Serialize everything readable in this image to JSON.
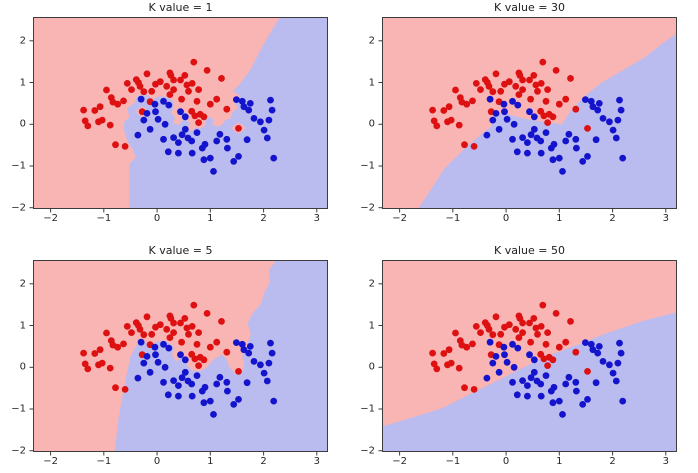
{
  "colors": {
    "region_red": "#f9b4b4",
    "region_blue": "#babcf0",
    "dot_red": "#dd1111",
    "dot_blue": "#1414cc",
    "axis": "#3d3d3d",
    "text": "#262626"
  },
  "chart_data": {
    "type": "scatter",
    "description": "KNN decision boundary plots on two-moons data for four K values",
    "xlim": [
      -2.33,
      3.21
    ],
    "ylim": [
      -2.03,
      2.57
    ],
    "xticks": [
      -2,
      -1,
      0,
      1,
      2,
      3
    ],
    "yticks": [
      -2,
      -1,
      0,
      1,
      2
    ],
    "grid": false,
    "legend": false,
    "series": [
      {
        "name": "class_red",
        "color": "#dd1111",
        "points": [
          [
            -1.38,
            0.34
          ],
          [
            -1.35,
            0.08
          ],
          [
            -1.3,
            -0.04
          ],
          [
            -1.17,
            0.33
          ],
          [
            -1.1,
            0.06
          ],
          [
            -1.07,
            0.42
          ],
          [
            -1.03,
            0.1
          ],
          [
            -0.95,
            0.82
          ],
          [
            -0.88,
            -0.02
          ],
          [
            -0.86,
            0.64
          ],
          [
            -0.83,
            0.53
          ],
          [
            -0.78,
            -0.49
          ],
          [
            -0.74,
            0.48
          ],
          [
            -0.63,
            0.56
          ],
          [
            -0.6,
            -0.53
          ],
          [
            -0.56,
            0.98
          ],
          [
            -0.48,
            0.83
          ],
          [
            -0.39,
            1.07
          ],
          [
            -0.35,
            1.0
          ],
          [
            -0.32,
            0.91
          ],
          [
            -0.28,
            0.3
          ],
          [
            -0.25,
            0.78
          ],
          [
            -0.19,
            1.21
          ],
          [
            -0.13,
            0.54
          ],
          [
            -0.1,
            0.79
          ],
          [
            -0.03,
            0.96
          ],
          [
            0.06,
            1.02
          ],
          [
            0.18,
            0.91
          ],
          [
            0.24,
            1.23
          ],
          [
            0.24,
            0.71
          ],
          [
            0.26,
            1.17
          ],
          [
            0.31,
            0.83
          ],
          [
            0.31,
            1.06
          ],
          [
            0.44,
            1.06
          ],
          [
            0.46,
            0.6
          ],
          [
            0.52,
            1.17
          ],
          [
            0.56,
            0.94
          ],
          [
            0.59,
            0.79
          ],
          [
            0.65,
            0.31
          ],
          [
            0.66,
            0.98
          ],
          [
            0.69,
            1.49
          ],
          [
            0.71,
            0.2
          ],
          [
            0.75,
            0.55
          ],
          [
            0.78,
            0.83
          ],
          [
            0.78,
            0.04
          ],
          [
            0.81,
            0.24
          ],
          [
            0.88,
            0.18
          ],
          [
            0.94,
            1.29
          ],
          [
            1.0,
            0.48
          ],
          [
            1.12,
            0.6
          ],
          [
            1.21,
            1.1
          ],
          [
            1.31,
            0.36
          ],
          [
            1.53,
            -0.1
          ]
        ]
      },
      {
        "name": "class_blue",
        "color": "#1414cc",
        "points": [
          [
            -0.36,
            -0.26
          ],
          [
            -0.3,
            0.6
          ],
          [
            -0.25,
            0.1
          ],
          [
            -0.19,
            0.26
          ],
          [
            -0.13,
            -0.12
          ],
          [
            -0.04,
            0.48
          ],
          [
            -0.03,
            0.3
          ],
          [
            0.02,
            0.12
          ],
          [
            0.12,
            0.55
          ],
          [
            0.12,
            -0.36
          ],
          [
            0.15,
            0.0
          ],
          [
            0.21,
            -0.66
          ],
          [
            0.22,
            0.46
          ],
          [
            0.31,
            -0.32
          ],
          [
            0.4,
            -0.44
          ],
          [
            0.4,
            -0.69
          ],
          [
            0.44,
            0.3
          ],
          [
            0.47,
            -0.25
          ],
          [
            0.53,
            -0.12
          ],
          [
            0.53,
            0.18
          ],
          [
            0.58,
            -0.33
          ],
          [
            0.65,
            -0.4
          ],
          [
            0.66,
            -0.69
          ],
          [
            0.75,
            -0.2
          ],
          [
            0.85,
            -0.57
          ],
          [
            0.88,
            -0.85
          ],
          [
            0.9,
            -0.48
          ],
          [
            1.0,
            -0.81
          ],
          [
            1.06,
            -1.13
          ],
          [
            1.12,
            -0.4
          ],
          [
            1.18,
            -0.24
          ],
          [
            1.31,
            -0.36
          ],
          [
            1.32,
            -0.57
          ],
          [
            1.44,
            -0.89
          ],
          [
            1.49,
            0.59
          ],
          [
            1.53,
            -0.77
          ],
          [
            1.6,
            0.55
          ],
          [
            1.63,
            0.42
          ],
          [
            1.69,
            -0.37
          ],
          [
            1.72,
            0.34
          ],
          [
            1.75,
            0.5
          ],
          [
            1.82,
            0.14
          ],
          [
            1.94,
            0.06
          ],
          [
            2.01,
            -0.14
          ],
          [
            2.07,
            -0.33
          ],
          [
            2.1,
            0.1
          ],
          [
            2.13,
            0.58
          ],
          [
            2.16,
            0.34
          ],
          [
            2.19,
            -0.81
          ]
        ]
      }
    ],
    "subplots": [
      {
        "title": "K value = 1",
        "k": 1,
        "blue_region": [
          [
            -0.52,
            -2.03
          ],
          [
            -0.52,
            -0.95
          ],
          [
            -0.4,
            -0.8
          ],
          [
            -0.46,
            -0.6
          ],
          [
            -0.55,
            -0.42
          ],
          [
            -0.62,
            -0.15
          ],
          [
            -0.62,
            0.05
          ],
          [
            -0.52,
            0.18
          ],
          [
            -0.56,
            0.38
          ],
          [
            -0.42,
            0.52
          ],
          [
            -0.38,
            0.66
          ],
          [
            -0.22,
            0.73
          ],
          [
            -0.08,
            0.6
          ],
          [
            0.04,
            0.67
          ],
          [
            0.16,
            0.66
          ],
          [
            0.29,
            0.58
          ],
          [
            0.32,
            0.42
          ],
          [
            0.26,
            0.28
          ],
          [
            0.34,
            0.16
          ],
          [
            0.3,
            0.04
          ],
          [
            0.4,
            -0.02
          ],
          [
            0.48,
            0.1
          ],
          [
            0.46,
            0.24
          ],
          [
            0.52,
            0.3
          ],
          [
            0.58,
            0.22
          ],
          [
            0.56,
            0.1
          ],
          [
            0.62,
            0.02
          ],
          [
            0.56,
            -0.12
          ],
          [
            0.66,
            -0.16
          ],
          [
            0.72,
            -0.08
          ],
          [
            0.84,
            -0.1
          ],
          [
            0.92,
            0.0
          ],
          [
            0.9,
            0.12
          ],
          [
            0.98,
            0.18
          ],
          [
            1.06,
            0.12
          ],
          [
            1.04,
            0.0
          ],
          [
            1.13,
            -0.06
          ],
          [
            1.22,
            -0.02
          ],
          [
            1.28,
            0.1
          ],
          [
            1.38,
            0.14
          ],
          [
            1.42,
            0.3
          ],
          [
            1.52,
            0.38
          ],
          [
            1.46,
            0.52
          ],
          [
            1.56,
            0.68
          ],
          [
            1.42,
            0.8
          ],
          [
            1.55,
            0.95
          ],
          [
            1.63,
            1.1
          ],
          [
            1.75,
            1.3
          ],
          [
            1.85,
            1.55
          ],
          [
            1.95,
            1.8
          ],
          [
            2.06,
            2.05
          ],
          [
            2.18,
            2.3
          ],
          [
            2.31,
            2.57
          ],
          [
            3.21,
            2.57
          ],
          [
            3.21,
            -2.03
          ]
        ],
        "red_islands": [
          [
            [
              -0.41,
              0.3
            ],
            [
              -0.28,
              0.43
            ],
            [
              -0.15,
              0.3
            ],
            [
              -0.28,
              0.17
            ]
          ],
          [
            [
              1.39,
              -0.09
            ],
            [
              1.53,
              0.05
            ],
            [
              1.67,
              -0.09
            ],
            [
              1.53,
              -0.23
            ]
          ]
        ]
      },
      {
        "title": "K value = 30",
        "k": 30,
        "blue_region": [
          [
            -1.65,
            -2.03
          ],
          [
            -1.15,
            -1.05
          ],
          [
            -0.75,
            -0.55
          ],
          [
            -0.5,
            -0.28
          ],
          [
            -0.28,
            -0.05
          ],
          [
            -0.25,
            0.2
          ],
          [
            -0.05,
            0.28
          ],
          [
            0.3,
            0.14
          ],
          [
            0.6,
            0.08
          ],
          [
            0.9,
            0.02
          ],
          [
            1.05,
            0.0
          ],
          [
            1.2,
            0.3
          ],
          [
            1.5,
            0.7
          ],
          [
            1.8,
            1.0
          ],
          [
            2.2,
            1.3
          ],
          [
            2.6,
            1.6
          ],
          [
            2.95,
            1.95
          ],
          [
            3.21,
            2.18
          ],
          [
            3.21,
            -2.03
          ]
        ],
        "red_islands": []
      },
      {
        "title": "K value = 5",
        "k": 5,
        "blue_region": [
          [
            -0.8,
            -2.03
          ],
          [
            -0.72,
            -1.2
          ],
          [
            -0.62,
            -0.5
          ],
          [
            -0.56,
            -0.1
          ],
          [
            -0.5,
            0.25
          ],
          [
            -0.4,
            0.5
          ],
          [
            -0.28,
            0.66
          ],
          [
            -0.14,
            0.5
          ],
          [
            0.0,
            0.62
          ],
          [
            0.1,
            0.64
          ],
          [
            0.2,
            0.6
          ],
          [
            0.32,
            0.48
          ],
          [
            0.28,
            0.3
          ],
          [
            0.36,
            0.14
          ],
          [
            0.48,
            0.26
          ],
          [
            0.58,
            0.2
          ],
          [
            0.56,
            0.04
          ],
          [
            0.66,
            -0.08
          ],
          [
            0.8,
            -0.1
          ],
          [
            0.92,
            -0.02
          ],
          [
            1.0,
            0.1
          ],
          [
            1.1,
            0.22
          ],
          [
            1.22,
            0.3
          ],
          [
            1.3,
            0.2
          ],
          [
            1.36,
            0.0
          ],
          [
            1.46,
            -0.15
          ],
          [
            1.58,
            -0.14
          ],
          [
            1.64,
            0.02
          ],
          [
            1.6,
            0.28
          ],
          [
            1.68,
            0.5
          ],
          [
            1.76,
            0.78
          ],
          [
            1.7,
            1.05
          ],
          [
            1.8,
            1.3
          ],
          [
            1.95,
            1.52
          ],
          [
            2.02,
            1.8
          ],
          [
            2.12,
            2.05
          ],
          [
            2.1,
            2.35
          ],
          [
            2.25,
            2.57
          ],
          [
            3.21,
            2.57
          ],
          [
            3.21,
            -2.03
          ]
        ],
        "red_islands": []
      },
      {
        "title": "K value = 50",
        "k": 50,
        "blue_region": [
          [
            -2.33,
            -1.42
          ],
          [
            -1.8,
            -1.22
          ],
          [
            -1.2,
            -0.98
          ],
          [
            -0.6,
            -0.6
          ],
          [
            -0.1,
            -0.28
          ],
          [
            0.3,
            -0.02
          ],
          [
            0.8,
            0.28
          ],
          [
            1.3,
            0.52
          ],
          [
            1.9,
            0.82
          ],
          [
            2.6,
            1.12
          ],
          [
            3.21,
            1.32
          ],
          [
            3.21,
            -2.03
          ],
          [
            -2.33,
            -2.03
          ]
        ],
        "red_islands": []
      }
    ]
  }
}
